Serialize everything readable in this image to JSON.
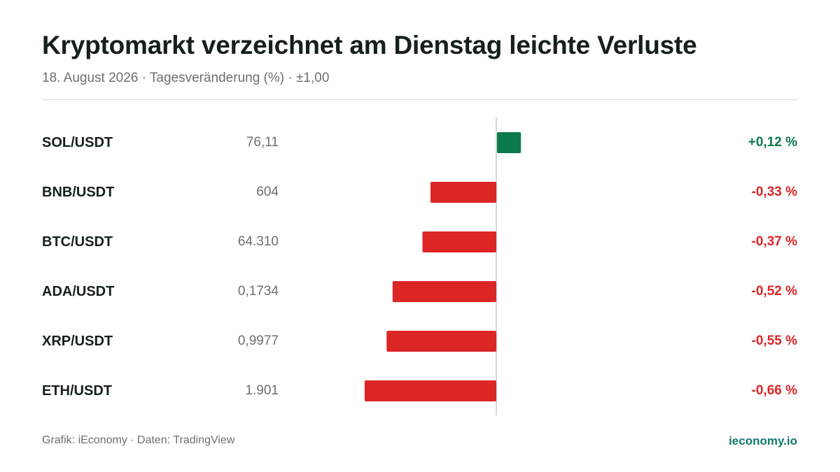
{
  "header": {
    "title": "Kryptomarkt verzeichnet am Dienstag leichte Verluste",
    "subtitle": "18. August 2026 · Tagesveränderung (%) · ±1,00"
  },
  "chart_data": {
    "type": "bar",
    "orientation": "horizontal",
    "categories": [
      "SOL/USDT",
      "BNB/USDT",
      "BTC/USDT",
      "ADA/USDT",
      "XRP/USDT",
      "ETH/USDT"
    ],
    "prices": [
      "76,11",
      "604",
      "64.310",
      "0,1734",
      "0,9977",
      "1.901"
    ],
    "values": [
      0.12,
      -0.33,
      -0.37,
      -0.52,
      -0.55,
      -0.66
    ],
    "value_labels": [
      "+0,12 %",
      "-0,33 %",
      "-0,37 %",
      "-0,52 %",
      "-0,55 %",
      "-0,66 %"
    ],
    "xlim": [
      -1,
      1
    ],
    "colors": {
      "positive": "#0d7a4c",
      "negative": "#dc2626",
      "zero_line": "#d4d6d8"
    }
  },
  "footer": {
    "source": "Grafik: iEconomy · Daten: TradingView",
    "brand": "ieconomy.io"
  }
}
